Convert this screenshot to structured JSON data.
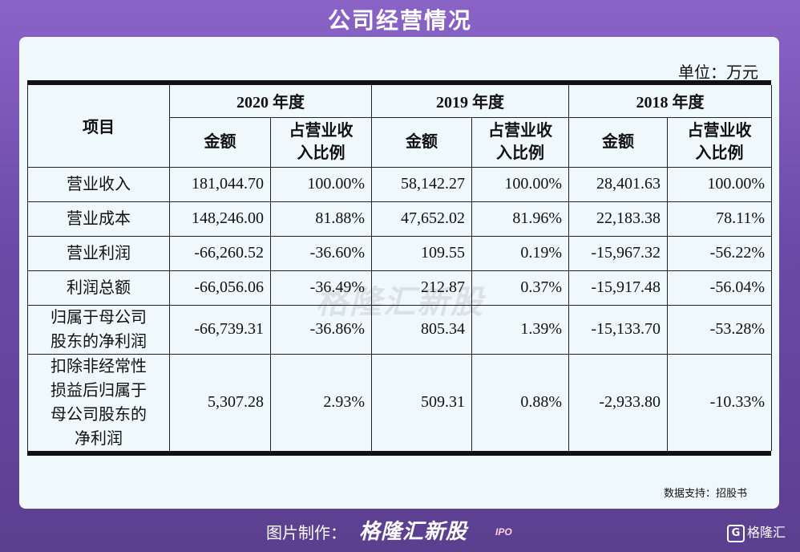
{
  "title": "公司经营情况",
  "unit": "单位：万元",
  "table": {
    "header_item": "项目",
    "years": [
      "2020 年度",
      "2019 年度",
      "2018 年度"
    ],
    "sub_amount": "金额",
    "sub_ratio_line1": "占营业收",
    "sub_ratio_line2": "入比例",
    "rows": [
      {
        "label_lines": [
          "营业收入"
        ],
        "values": [
          "181,044.70",
          "100.00%",
          "58,142.27",
          "100.00%",
          "28,401.63",
          "100.00%"
        ]
      },
      {
        "label_lines": [
          "营业成本"
        ],
        "values": [
          "148,246.00",
          "81.88%",
          "47,652.02",
          "81.96%",
          "22,183.38",
          "78.11%"
        ]
      },
      {
        "label_lines": [
          "营业利润"
        ],
        "values": [
          "-66,260.52",
          "-36.60%",
          "109.55",
          "0.19%",
          "-15,967.32",
          "-56.22%"
        ]
      },
      {
        "label_lines": [
          "利润总额"
        ],
        "values": [
          "-66,056.06",
          "-36.49%",
          "212.87",
          "0.37%",
          "-15,917.48",
          "-56.04%"
        ]
      },
      {
        "label_lines": [
          "归属于母公司",
          "股东的净利润"
        ],
        "values": [
          "-66,739.31",
          "-36.86%",
          "805.34",
          "1.39%",
          "-15,133.70",
          "-53.28%"
        ]
      },
      {
        "label_lines": [
          "扣除非经常性",
          "损益后归属于",
          "母公司股东的",
          "净利润"
        ],
        "values": [
          "5,307.28",
          "2.93%",
          "509.31",
          "0.88%",
          "-2,933.80",
          "-10.33%"
        ]
      }
    ]
  },
  "watermark": "格隆汇新股",
  "source": "数据支持：招股书",
  "footer": {
    "credit": "图片制作：",
    "brand": "格隆汇新股",
    "brand_tag": "IPO",
    "corner_logo_letter": "G",
    "corner_logo_text": "格隆汇"
  }
}
